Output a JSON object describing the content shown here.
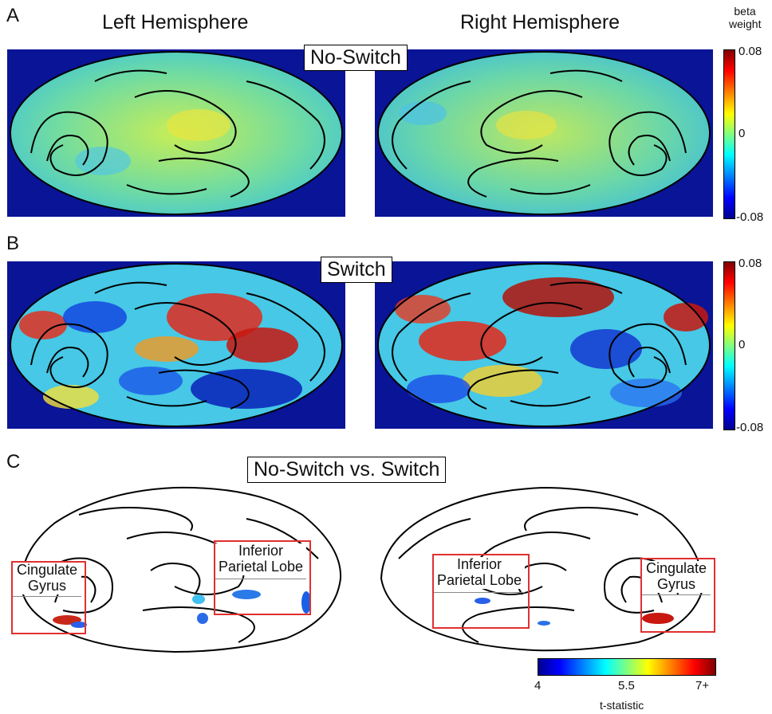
{
  "panels": {
    "a": {
      "letter": "A",
      "condition": "No-Switch"
    },
    "b": {
      "letter": "B",
      "condition": "Switch"
    },
    "c": {
      "letter": "C",
      "condition": "No-Switch vs. Switch"
    }
  },
  "hemispheres": {
    "left": "Left Hemisphere",
    "right": "Right Hemisphere"
  },
  "colorbar_beta": {
    "title_line1": "beta",
    "title_line2": "weight",
    "max": "0.08",
    "mid": "0",
    "min": "-0.08",
    "colormap": [
      "#00008f",
      "#0000ff",
      "#00ffff",
      "#ffff00",
      "#ff0000",
      "#800000"
    ]
  },
  "colorbar_t": {
    "title": "t-statistic",
    "min": "4",
    "mid": "5.5",
    "max": "7+",
    "colormap": [
      "#00008f",
      "#0000ff",
      "#00ffff",
      "#ffff00",
      "#ff0000",
      "#800000"
    ]
  },
  "roi": {
    "left_cingulate_line1": "Cingulate",
    "left_cingulate_line2": "Gyrus",
    "left_parietal_line1": "Inferior",
    "left_parietal_line2": "Parietal Lobe",
    "right_parietal_line1": "Inferior",
    "right_parietal_line2": "Parietal Lobe",
    "right_cingulate_line1": "Cingulate",
    "right_cingulate_line2": "Gyrus"
  }
}
